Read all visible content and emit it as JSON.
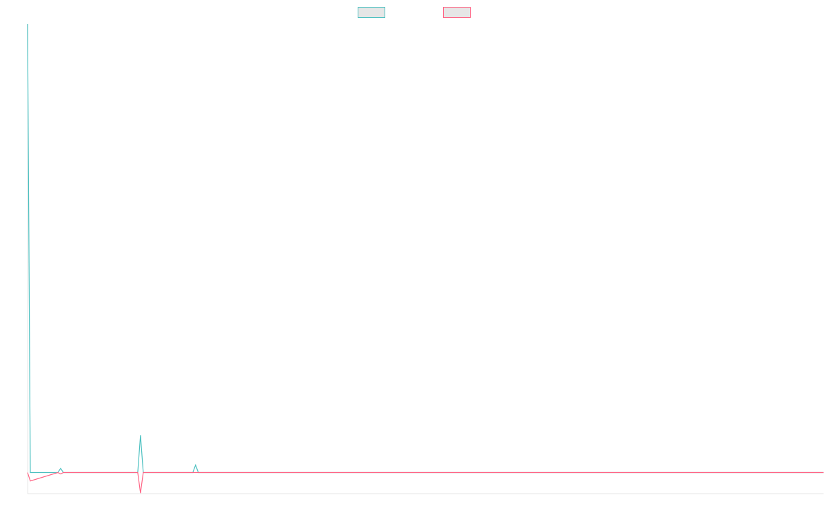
{
  "chart_data": {
    "type": "line",
    "legend": "top",
    "background": "#e6e6e6",
    "x": [
      0,
      1,
      11,
      12,
      13,
      40,
      41,
      42,
      60,
      61,
      62,
      289
    ],
    "xlim": [
      0,
      289
    ],
    "ylim": [
      -4.5,
      96
    ],
    "series": [
      {
        "color": "#4bc0c0",
        "values": [
          96,
          0,
          0,
          0.9,
          0,
          0,
          8,
          0,
          0,
          1.6,
          0,
          0
        ]
      },
      {
        "color": "#ff6384",
        "values": [
          0,
          -1.8,
          0,
          -0.3,
          0,
          0,
          -4.4,
          0,
          0,
          0,
          0,
          0
        ]
      }
    ]
  }
}
